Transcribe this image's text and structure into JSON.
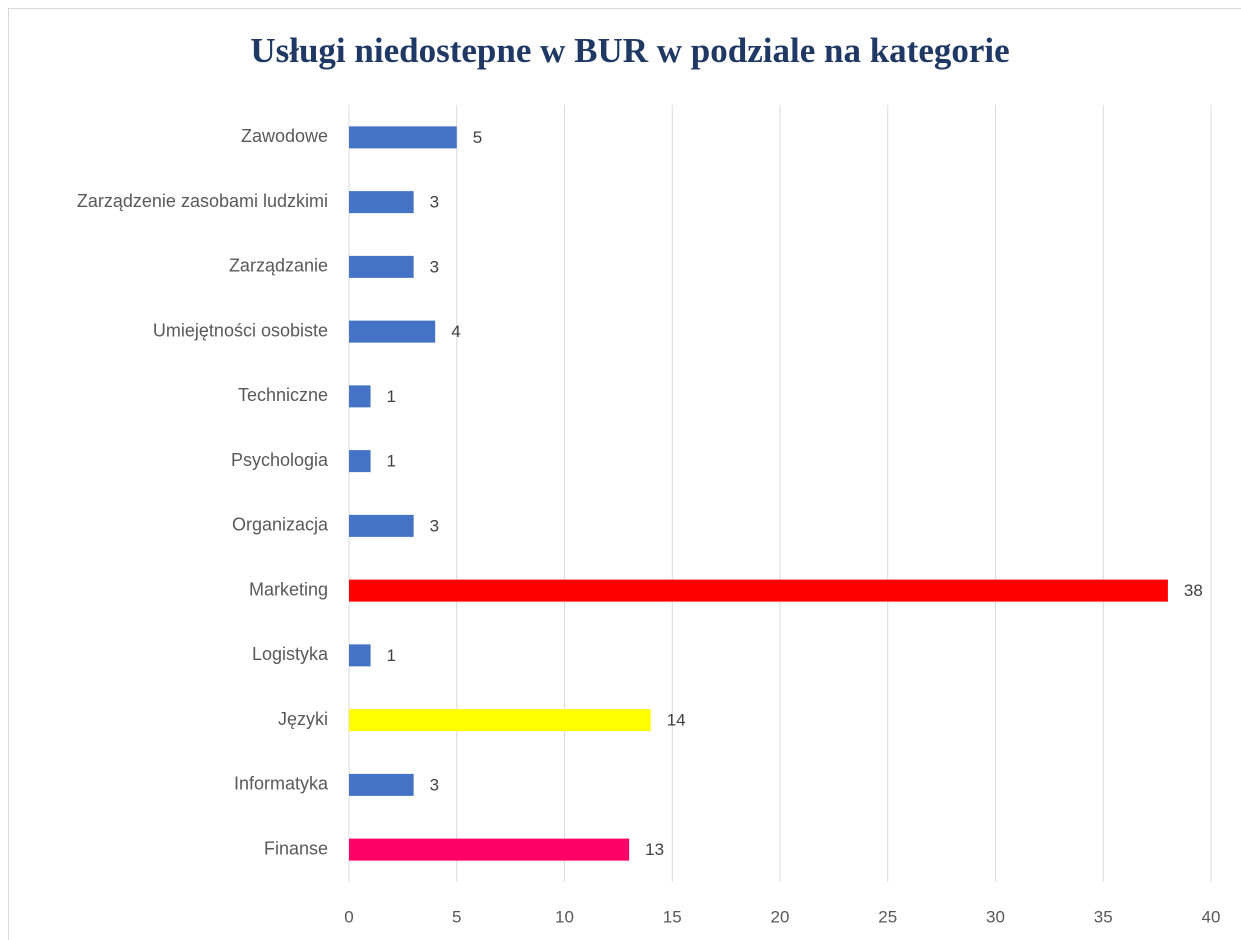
{
  "chart_data": {
    "type": "hbar",
    "title": "Usługi niedostepne w BUR w podziale na kategorie",
    "categories": [
      "Zawodowe",
      "Zarządzenie zasobami ludzkimi",
      "Zarządzanie",
      "Umiejętności osobiste",
      "Techniczne",
      "Psychologia",
      "Organizacja",
      "Marketing",
      "Logistyka",
      "Języki",
      "Informatyka",
      "Finanse"
    ],
    "values": [
      5,
      3,
      3,
      4,
      1,
      1,
      3,
      38,
      1,
      14,
      3,
      13
    ],
    "colors": [
      "#4472c4",
      "#4472c4",
      "#4472c4",
      "#4472c4",
      "#4472c4",
      "#4472c4",
      "#4472c4",
      "#ff0000",
      "#4472c4",
      "#ffff00",
      "#4472c4",
      "#ff0066"
    ],
    "xlim": [
      0,
      40
    ],
    "xticks": [
      0,
      5,
      10,
      15,
      20,
      25,
      30,
      35,
      40
    ],
    "grid": true
  }
}
